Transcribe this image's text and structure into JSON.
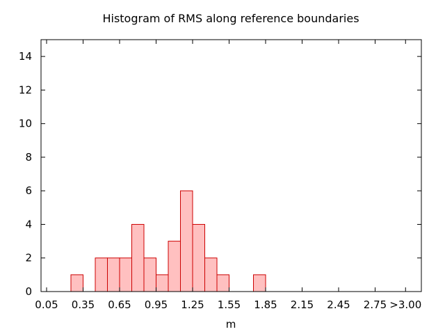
{
  "chart_data": {
    "type": "bar",
    "title": "Histogram of RMS along reference boundaries",
    "xlabel": "m",
    "ylabel": "",
    "bin_width": 0.1,
    "xlim": [
      0.05,
      3.05
    ],
    "ylim": [
      0,
      15
    ],
    "x_ticks": [
      0.05,
      0.35,
      0.65,
      0.95,
      1.25,
      1.55,
      1.85,
      2.15,
      2.45,
      2.75,
      3.0
    ],
    "x_tick_labels": [
      "0.05",
      "0.35",
      "0.65",
      "0.95",
      "1.25",
      "1.55",
      "1.85",
      "2.15",
      "2.45",
      "2.75",
      ">3.00"
    ],
    "y_ticks": [
      0,
      2,
      4,
      6,
      8,
      10,
      12,
      14
    ],
    "y_tick_labels": [
      "0",
      "2",
      "4",
      "6",
      "8",
      "10",
      "12",
      "14"
    ],
    "bins": [
      {
        "start": 0.25,
        "end": 0.35,
        "count": 1
      },
      {
        "start": 0.45,
        "end": 0.55,
        "count": 2
      },
      {
        "start": 0.55,
        "end": 0.65,
        "count": 2
      },
      {
        "start": 0.65,
        "end": 0.75,
        "count": 2
      },
      {
        "start": 0.75,
        "end": 0.85,
        "count": 4
      },
      {
        "start": 0.85,
        "end": 0.95,
        "count": 2
      },
      {
        "start": 0.95,
        "end": 1.05,
        "count": 1
      },
      {
        "start": 1.05,
        "end": 1.15,
        "count": 3
      },
      {
        "start": 1.15,
        "end": 1.25,
        "count": 6
      },
      {
        "start": 1.25,
        "end": 1.35,
        "count": 4
      },
      {
        "start": 1.35,
        "end": 1.45,
        "count": 2
      },
      {
        "start": 1.45,
        "end": 1.55,
        "count": 1
      },
      {
        "start": 1.75,
        "end": 1.85,
        "count": 1
      }
    ],
    "bar_fill": "#ffc0c0",
    "bar_stroke": "#cc0000",
    "grid": false,
    "legend": "none"
  }
}
